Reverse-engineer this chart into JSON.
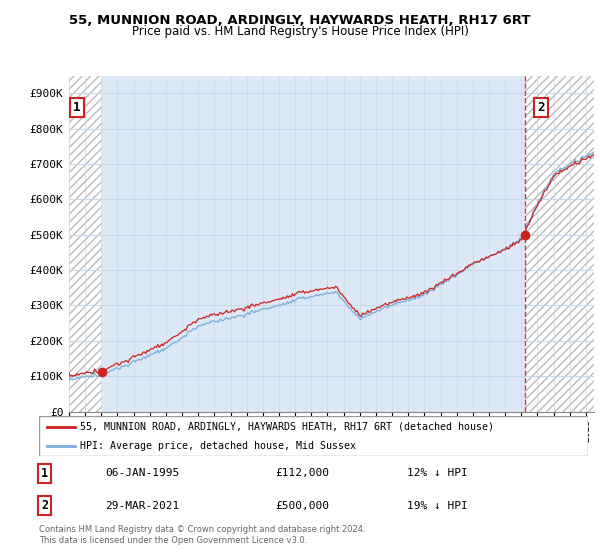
{
  "title_line1": "55, MUNNION ROAD, ARDINGLY, HAYWARDS HEATH, RH17 6RT",
  "title_line2": "Price paid vs. HM Land Registry's House Price Index (HPI)",
  "ylim": [
    0,
    950000
  ],
  "yticks": [
    0,
    100000,
    200000,
    300000,
    400000,
    500000,
    600000,
    700000,
    800000,
    900000
  ],
  "ytick_labels": [
    "£0",
    "£100K",
    "£200K",
    "£300K",
    "£400K",
    "£500K",
    "£600K",
    "£700K",
    "£800K",
    "£900K"
  ],
  "sale1_x": 1995.04,
  "sale1_price": 112000,
  "sale2_x": 2021.23,
  "sale2_price": 500000,
  "sale1_date_str": "06-JAN-1995",
  "sale1_price_str": "£112,000",
  "sale1_pct": "12% ↓ HPI",
  "sale2_date_str": "29-MAR-2021",
  "sale2_price_str": "£500,000",
  "sale2_pct": "19% ↓ HPI",
  "hpi_color": "#7aaddb",
  "price_color": "#cc2222",
  "active_bg": "#dce8f5",
  "hatch_bg": "#f0f0f0",
  "grid_color": "#c8d8e8",
  "legend_line1": "55, MUNNION ROAD, ARDINGLY, HAYWARDS HEATH, RH17 6RT (detached house)",
  "legend_line2": "HPI: Average price, detached house, Mid Sussex",
  "footer": "Contains HM Land Registry data © Crown copyright and database right 2024.\nThis data is licensed under the Open Government Licence v3.0.",
  "xstart": 1993,
  "xend": 2025.5
}
